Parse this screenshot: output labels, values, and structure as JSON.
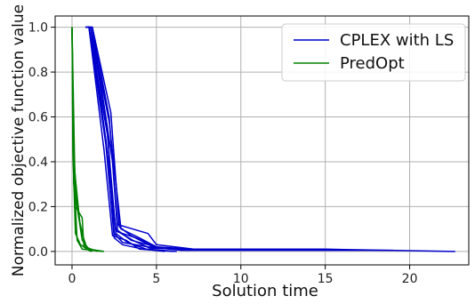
{
  "chart_data": {
    "type": "line",
    "xlabel": "Solution time",
    "ylabel": "Normalized objective function value",
    "xlim": [
      -1.0,
      23.5
    ],
    "ylim": [
      -0.06,
      1.05
    ],
    "xticks": [
      0,
      5,
      10,
      15,
      20
    ],
    "yticks": [
      0.0,
      0.2,
      0.4,
      0.6,
      0.8,
      1.0
    ],
    "xtick_labels": [
      "0",
      "5",
      "10",
      "15",
      "20"
    ],
    "ytick_labels": [
      "0.0",
      "0.2",
      "0.4",
      "0.6",
      "0.8",
      "1.0"
    ],
    "grid": true,
    "legend": {
      "placement": "top-right",
      "entries": [
        {
          "label": "CPLEX with LS",
          "color": "#0000cc"
        },
        {
          "label": "PredOpt",
          "color": "#008000"
        }
      ]
    },
    "series": [
      {
        "group": "CPLEX with LS",
        "color": "#0000cc",
        "x": [
          0.8,
          1.0,
          2.0,
          2.6,
          3.5,
          5.0,
          7.0,
          15.0,
          22.7
        ],
        "y": [
          1.0,
          1.0,
          0.5,
          0.1,
          0.05,
          0.02,
          0.01,
          0.01,
          0.0
        ]
      },
      {
        "group": "CPLEX with LS",
        "color": "#0000cc",
        "x": [
          0.8,
          1.1,
          2.1,
          2.5,
          3.0,
          4.5,
          6.5,
          19.0
        ],
        "y": [
          1.0,
          1.0,
          0.55,
          0.08,
          0.04,
          0.02,
          0.005,
          0.005
        ]
      },
      {
        "group": "CPLEX with LS",
        "color": "#0000cc",
        "x": [
          0.9,
          1.2,
          2.2,
          2.7,
          4.5,
          5.0,
          7.2
        ],
        "y": [
          1.0,
          1.0,
          0.6,
          0.12,
          0.08,
          0.03,
          0.01
        ]
      },
      {
        "group": "CPLEX with LS",
        "color": "#0000cc",
        "x": [
          0.8,
          1.0,
          1.9,
          2.4,
          3.2,
          4.0,
          6.0
        ],
        "y": [
          1.0,
          1.0,
          0.45,
          0.07,
          0.05,
          0.01,
          0.0
        ]
      },
      {
        "group": "CPLEX with LS",
        "color": "#0000cc",
        "x": [
          0.9,
          1.1,
          2.0,
          2.6,
          3.8,
          5.2,
          7.0
        ],
        "y": [
          1.0,
          1.0,
          0.5,
          0.09,
          0.06,
          0.015,
          0.005
        ]
      },
      {
        "group": "CPLEX with LS",
        "color": "#0000cc",
        "x": [
          0.8,
          1.2,
          2.3,
          2.8,
          3.5,
          4.8,
          6.8
        ],
        "y": [
          1.0,
          1.0,
          0.62,
          0.11,
          0.07,
          0.02,
          0.01
        ]
      },
      {
        "group": "CPLEX with LS",
        "color": "#0000cc",
        "x": [
          0.9,
          1.0,
          2.0,
          2.5,
          3.0,
          4.2,
          5.5
        ],
        "y": [
          1.0,
          1.0,
          0.48,
          0.06,
          0.03,
          0.01,
          0.0
        ]
      },
      {
        "group": "CPLEX with LS",
        "color": "#0000cc",
        "x": [
          0.8,
          1.1,
          2.2,
          2.9,
          4.0,
          5.0,
          6.5
        ],
        "y": [
          1.0,
          1.0,
          0.58,
          0.1,
          0.06,
          0.02,
          0.005
        ]
      },
      {
        "group": "CPLEX with LS",
        "color": "#0000cc",
        "x": [
          1.0,
          1.2,
          2.4,
          2.7,
          3.6,
          4.6,
          7.1
        ],
        "y": [
          1.0,
          1.0,
          0.4,
          0.09,
          0.05,
          0.015,
          0.008
        ]
      },
      {
        "group": "CPLEX with LS",
        "color": "#0000cc",
        "x": [
          0.8,
          1.0,
          2.1,
          2.6,
          3.3,
          4.4,
          6.2
        ],
        "y": [
          1.0,
          1.0,
          0.52,
          0.08,
          0.04,
          0.01,
          0.0
        ]
      },
      {
        "group": "PredOpt",
        "color": "#008000",
        "x": [
          0.0,
          0.05,
          0.3,
          0.6,
          1.0,
          1.9
        ],
        "y": [
          1.0,
          0.5,
          0.2,
          0.05,
          0.01,
          0.0
        ]
      },
      {
        "group": "PredOpt",
        "color": "#008000",
        "x": [
          0.0,
          0.1,
          0.4,
          0.8,
          1.5
        ],
        "y": [
          1.0,
          0.3,
          0.15,
          0.02,
          0.0
        ]
      },
      {
        "group": "PredOpt",
        "color": "#008000",
        "x": [
          0.0,
          0.1,
          0.5,
          0.9,
          1.2
        ],
        "y": [
          1.0,
          0.4,
          0.1,
          0.01,
          0.0
        ]
      },
      {
        "group": "PredOpt",
        "color": "#008000",
        "x": [
          0.0,
          0.2,
          0.6,
          0.7,
          1.0
        ],
        "y": [
          1.0,
          0.2,
          0.15,
          0.02,
          0.005
        ]
      },
      {
        "group": "PredOpt",
        "color": "#008000",
        "x": [
          0.0,
          0.05,
          0.2,
          0.5,
          1.1
        ],
        "y": [
          1.0,
          0.45,
          0.08,
          0.03,
          0.0
        ]
      },
      {
        "group": "PredOpt",
        "color": "#008000",
        "x": [
          0.0,
          0.1,
          0.3,
          0.6,
          1.8
        ],
        "y": [
          1.0,
          0.35,
          0.05,
          0.01,
          0.0
        ]
      }
    ]
  }
}
